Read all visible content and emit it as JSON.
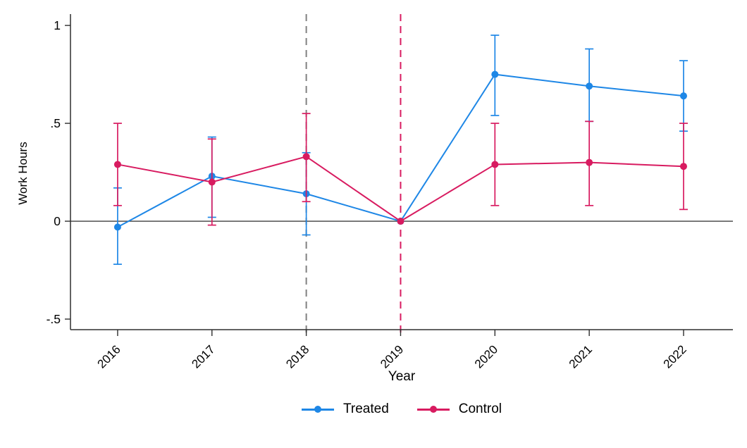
{
  "figure": {
    "background": "#ffffff"
  },
  "chart_data": {
    "type": "line",
    "title": "",
    "xlabel": "Year",
    "ylabel": "Work Hours",
    "xlim": [
      2015.5,
      2022.523
    ],
    "ylim": [
      -0.554,
      1.058
    ],
    "grid": false,
    "legend_position": "bottom-center",
    "x_ticks": [
      {
        "value": 2016,
        "label": "2016"
      },
      {
        "value": 2017,
        "label": "2017"
      },
      {
        "value": 2018,
        "label": "2018"
      },
      {
        "value": 2019,
        "label": "2019"
      },
      {
        "value": 2020,
        "label": "2020"
      },
      {
        "value": 2021,
        "label": "2021"
      },
      {
        "value": 2022,
        "label": "2022"
      }
    ],
    "y_ticks": [
      {
        "value": 1,
        "label": "1"
      },
      {
        "value": 0.5,
        "label": ".5"
      },
      {
        "value": 0,
        "label": "0"
      },
      {
        "value": -0.5,
        "label": "-.5"
      }
    ],
    "hline": {
      "y": 0,
      "color": "#3f3f3f"
    },
    "vlines": [
      {
        "x": 2018,
        "color": "#808080",
        "style": "dashed"
      },
      {
        "x": 2019,
        "color": "#d81b60",
        "style": "dashed"
      }
    ],
    "series": [
      {
        "name": "Treated",
        "color": "#1e87e6",
        "points": [
          {
            "x": 2016,
            "est": -0.03,
            "lo": -0.22,
            "hi": 0.17
          },
          {
            "x": 2017,
            "est": 0.23,
            "lo": 0.02,
            "hi": 0.43
          },
          {
            "x": 2018,
            "est": 0.14,
            "lo": -0.07,
            "hi": 0.35
          },
          {
            "x": 2019,
            "est": 0.0,
            "lo": 0.0,
            "hi": 0.0
          },
          {
            "x": 2020,
            "est": 0.75,
            "lo": 0.54,
            "hi": 0.95
          },
          {
            "x": 2021,
            "est": 0.69,
            "lo": 0.51,
            "hi": 0.88
          },
          {
            "x": 2022,
            "est": 0.64,
            "lo": 0.46,
            "hi": 0.82
          }
        ]
      },
      {
        "name": "Control",
        "color": "#d81b60",
        "points": [
          {
            "x": 2016,
            "est": 0.29,
            "lo": 0.08,
            "hi": 0.5
          },
          {
            "x": 2017,
            "est": 0.2,
            "lo": -0.02,
            "hi": 0.42
          },
          {
            "x": 2018,
            "est": 0.33,
            "lo": 0.1,
            "hi": 0.55
          },
          {
            "x": 2019,
            "est": 0.0,
            "lo": 0.0,
            "hi": 0.0
          },
          {
            "x": 2020,
            "est": 0.29,
            "lo": 0.08,
            "hi": 0.5
          },
          {
            "x": 2021,
            "est": 0.3,
            "lo": 0.08,
            "hi": 0.51
          },
          {
            "x": 2022,
            "est": 0.28,
            "lo": 0.06,
            "hi": 0.5
          }
        ]
      }
    ]
  }
}
